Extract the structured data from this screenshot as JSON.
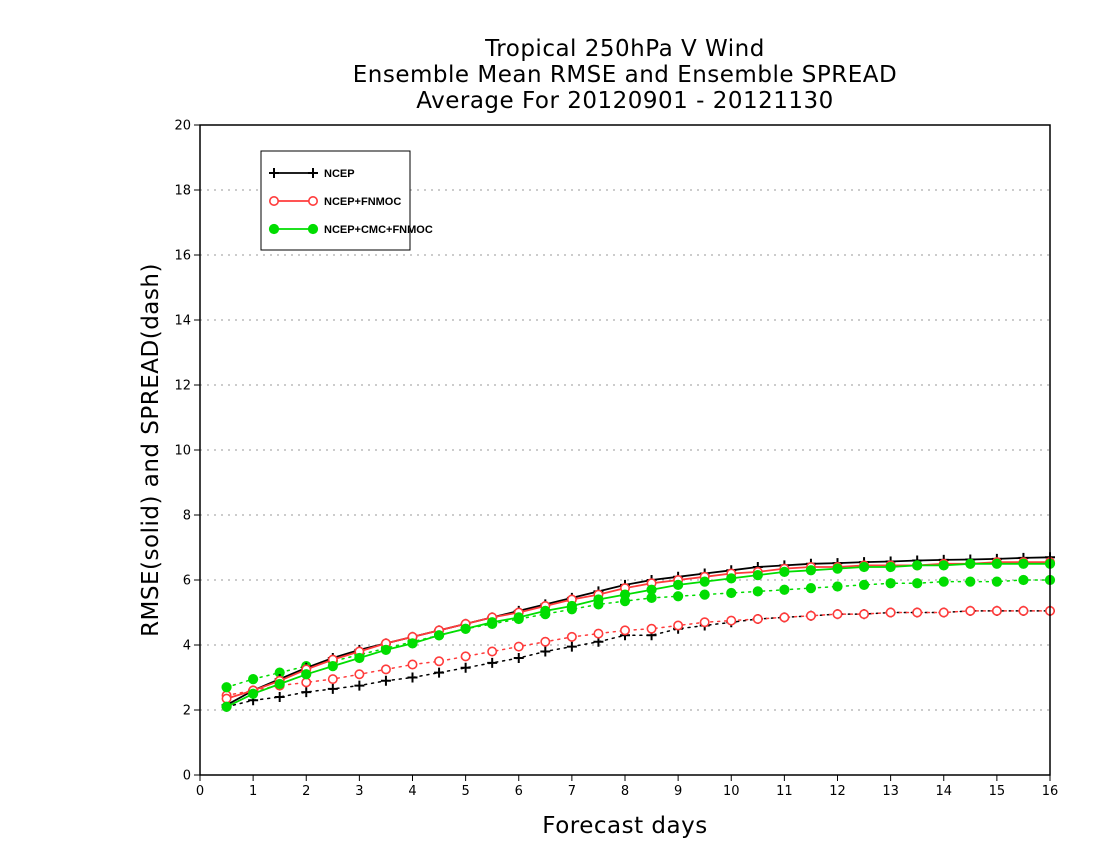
{
  "chart_data": {
    "type": "line",
    "title": [
      "Tropical 250hPa V Wind",
      "Ensemble Mean RMSE and Ensemble SPREAD",
      "Average For 20120901 - 20121130"
    ],
    "xlabel": "Forecast days",
    "ylabel": "RMSE(solid) and SPREAD(dash)",
    "xlim": [
      0,
      16
    ],
    "ylim": [
      0,
      20
    ],
    "xticks": [
      0,
      1,
      2,
      3,
      4,
      5,
      6,
      7,
      8,
      9,
      10,
      11,
      12,
      13,
      14,
      15,
      16
    ],
    "yticks": [
      0,
      2,
      4,
      6,
      8,
      10,
      12,
      14,
      16,
      18,
      20
    ],
    "grid": "horizontal dotted",
    "legend_position": "top-left",
    "x": [
      0.5,
      1,
      1.5,
      2,
      2.5,
      3,
      3.5,
      4,
      4.5,
      5,
      5.5,
      6,
      6.5,
      7,
      7.5,
      8,
      8.5,
      9,
      9.5,
      10,
      10.5,
      11,
      11.5,
      12,
      12.5,
      13,
      13.5,
      14,
      14.5,
      15,
      15.5,
      16
    ],
    "series": [
      {
        "name": "NCEP",
        "color": "#000000",
        "marker": "plus",
        "kind": "rmse",
        "values": [
          2.15,
          2.6,
          2.95,
          3.3,
          3.6,
          3.85,
          4.05,
          4.25,
          4.45,
          4.65,
          4.85,
          5.05,
          5.25,
          5.45,
          5.65,
          5.85,
          6.0,
          6.1,
          6.2,
          6.3,
          6.4,
          6.45,
          6.5,
          6.52,
          6.55,
          6.57,
          6.6,
          6.62,
          6.63,
          6.65,
          6.68,
          6.7
        ]
      },
      {
        "name": "NCEP",
        "color": "#000000",
        "marker": "plus",
        "kind": "spread",
        "values": [
          2.1,
          2.3,
          2.4,
          2.55,
          2.65,
          2.75,
          2.9,
          3.0,
          3.15,
          3.3,
          3.45,
          3.6,
          3.8,
          3.95,
          4.1,
          4.3,
          4.3,
          4.5,
          4.6,
          4.7,
          4.8,
          4.85,
          4.9,
          4.95,
          4.95,
          5.0,
          5.0,
          5.0,
          5.05,
          5.05,
          5.05,
          5.05
        ]
      },
      {
        "name": "NCEP+FNMOC",
        "color": "#ff3b3b",
        "marker": "open-circle",
        "kind": "rmse",
        "values": [
          2.35,
          2.6,
          2.9,
          3.25,
          3.55,
          3.8,
          4.05,
          4.25,
          4.45,
          4.65,
          4.85,
          5.0,
          5.2,
          5.4,
          5.55,
          5.75,
          5.9,
          6.0,
          6.1,
          6.2,
          6.25,
          6.35,
          6.4,
          6.4,
          6.45,
          6.45,
          6.45,
          6.5,
          6.5,
          6.55,
          6.55,
          6.55
        ]
      },
      {
        "name": "NCEP+FNMOC",
        "color": "#ff3b3b",
        "marker": "open-circle",
        "kind": "spread",
        "values": [
          2.45,
          2.6,
          2.75,
          2.85,
          2.95,
          3.1,
          3.25,
          3.4,
          3.5,
          3.65,
          3.8,
          3.95,
          4.1,
          4.25,
          4.35,
          4.45,
          4.5,
          4.6,
          4.7,
          4.75,
          4.8,
          4.85,
          4.9,
          4.95,
          4.95,
          5.0,
          5.0,
          5.0,
          5.05,
          5.05,
          5.05,
          5.05
        ]
      },
      {
        "name": "NCEP+CMC+FNMOC",
        "color": "#00dd00",
        "marker": "filled-circle",
        "kind": "rmse",
        "values": [
          2.1,
          2.5,
          2.8,
          3.1,
          3.35,
          3.6,
          3.85,
          4.05,
          4.3,
          4.5,
          4.7,
          4.85,
          5.05,
          5.2,
          5.4,
          5.55,
          5.7,
          5.85,
          5.95,
          6.05,
          6.15,
          6.25,
          6.3,
          6.35,
          6.4,
          6.4,
          6.45,
          6.45,
          6.5,
          6.5,
          6.5,
          6.5
        ]
      },
      {
        "name": "NCEP+CMC+FNMOC",
        "color": "#00dd00",
        "marker": "filled-circle",
        "kind": "spread",
        "values": [
          2.7,
          2.95,
          3.15,
          3.35,
          3.5,
          3.7,
          3.9,
          4.1,
          4.3,
          4.5,
          4.65,
          4.8,
          4.95,
          5.1,
          5.25,
          5.35,
          5.45,
          5.5,
          5.55,
          5.6,
          5.65,
          5.7,
          5.75,
          5.8,
          5.85,
          5.9,
          5.9,
          5.95,
          5.95,
          5.95,
          6.0,
          6.0
        ]
      }
    ]
  },
  "legend": {
    "items": [
      {
        "label": "NCEP",
        "color": "#000000",
        "marker": "plus"
      },
      {
        "label": "NCEP+FNMOC",
        "color": "#ff3b3b",
        "marker": "open-circle"
      },
      {
        "label": "NCEP+CMC+FNMOC",
        "color": "#00dd00",
        "marker": "filled-circle"
      }
    ]
  }
}
